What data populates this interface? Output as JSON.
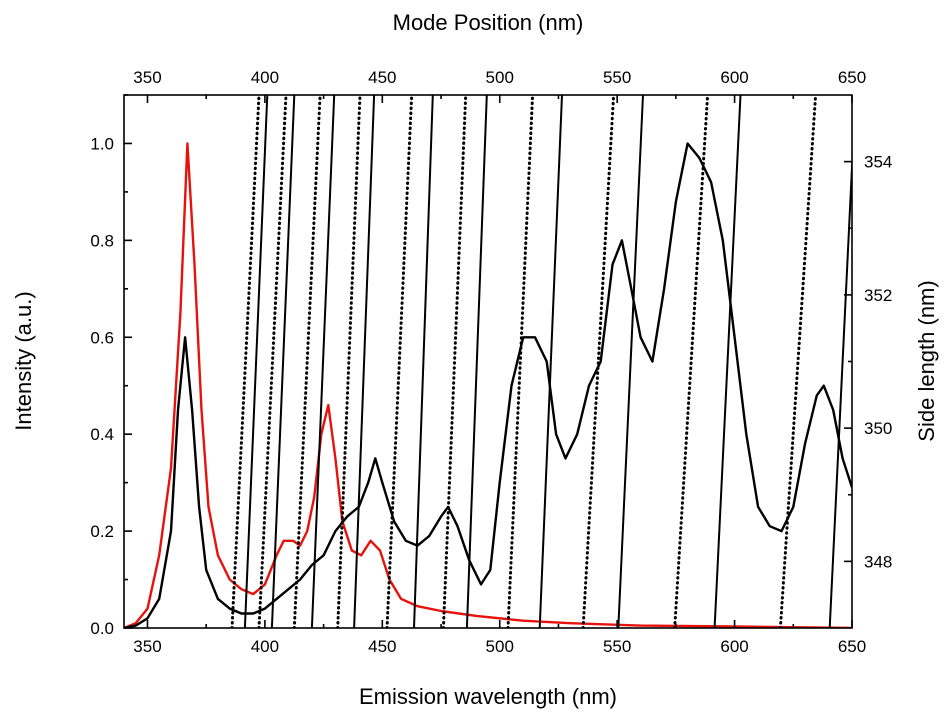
{
  "chart_data": {
    "type": "line",
    "title": "",
    "xlabel": "Emission wavelength (nm)",
    "ylabel": "Intensity (a.u.)",
    "x2label": "Mode Position (nm)",
    "y2label": "Side length (nm)",
    "xlim": [
      340,
      650
    ],
    "ylim": [
      0,
      1.1
    ],
    "x2lim": [
      340,
      650
    ],
    "y2lim": [
      347,
      355
    ],
    "x_ticks": [
      "350",
      "400",
      "450",
      "500",
      "550",
      "600",
      "650"
    ],
    "y_ticks": [
      "0.0",
      "0.2",
      "0.4",
      "0.6",
      "0.8",
      "1.0"
    ],
    "x2_ticks": [
      "350",
      "400",
      "450",
      "500",
      "550",
      "600",
      "650"
    ],
    "y2_ticks": [
      "348",
      "350",
      "352",
      "354"
    ],
    "grid": false,
    "series": [
      {
        "color": "#e8120c",
        "style": "solid",
        "axis": "left",
        "points": [
          [
            340,
            0.0
          ],
          [
            345,
            0.01
          ],
          [
            350,
            0.04
          ],
          [
            355,
            0.15
          ],
          [
            360,
            0.33
          ],
          [
            364,
            0.65
          ],
          [
            367,
            1.0
          ],
          [
            370,
            0.75
          ],
          [
            373,
            0.45
          ],
          [
            376,
            0.25
          ],
          [
            380,
            0.15
          ],
          [
            385,
            0.1
          ],
          [
            390,
            0.08
          ],
          [
            395,
            0.07
          ],
          [
            400,
            0.09
          ],
          [
            405,
            0.15
          ],
          [
            408,
            0.18
          ],
          [
            412,
            0.18
          ],
          [
            415,
            0.17
          ],
          [
            418,
            0.2
          ],
          [
            421,
            0.27
          ],
          [
            424,
            0.4
          ],
          [
            427,
            0.46
          ],
          [
            430,
            0.35
          ],
          [
            433,
            0.22
          ],
          [
            437,
            0.16
          ],
          [
            441,
            0.15
          ],
          [
            445,
            0.18
          ],
          [
            449,
            0.16
          ],
          [
            453,
            0.1
          ],
          [
            458,
            0.06
          ],
          [
            465,
            0.045
          ],
          [
            475,
            0.035
          ],
          [
            490,
            0.025
          ],
          [
            510,
            0.015
          ],
          [
            530,
            0.01
          ],
          [
            560,
            0.005
          ],
          [
            600,
            0.003
          ],
          [
            650,
            0.0
          ]
        ]
      },
      {
        "color": "#000000",
        "style": "solid",
        "axis": "left",
        "points": [
          [
            340,
            0.0
          ],
          [
            345,
            0.005
          ],
          [
            350,
            0.02
          ],
          [
            355,
            0.06
          ],
          [
            360,
            0.2
          ],
          [
            363,
            0.45
          ],
          [
            366,
            0.6
          ],
          [
            369,
            0.45
          ],
          [
            372,
            0.25
          ],
          [
            375,
            0.12
          ],
          [
            380,
            0.06
          ],
          [
            385,
            0.04
          ],
          [
            390,
            0.03
          ],
          [
            395,
            0.03
          ],
          [
            400,
            0.04
          ],
          [
            405,
            0.06
          ],
          [
            410,
            0.08
          ],
          [
            415,
            0.1
          ],
          [
            420,
            0.13
          ],
          [
            425,
            0.15
          ],
          [
            430,
            0.2
          ],
          [
            435,
            0.23
          ],
          [
            440,
            0.25
          ],
          [
            444,
            0.3
          ],
          [
            447,
            0.35
          ],
          [
            450,
            0.3
          ],
          [
            455,
            0.22
          ],
          [
            460,
            0.18
          ],
          [
            465,
            0.17
          ],
          [
            470,
            0.19
          ],
          [
            475,
            0.23
          ],
          [
            478,
            0.25
          ],
          [
            482,
            0.21
          ],
          [
            487,
            0.14
          ],
          [
            492,
            0.09
          ],
          [
            496,
            0.12
          ],
          [
            500,
            0.3
          ],
          [
            505,
            0.5
          ],
          [
            510,
            0.6
          ],
          [
            515,
            0.6
          ],
          [
            520,
            0.55
          ],
          [
            524,
            0.4
          ],
          [
            528,
            0.35
          ],
          [
            533,
            0.4
          ],
          [
            538,
            0.5
          ],
          [
            543,
            0.55
          ],
          [
            548,
            0.75
          ],
          [
            552,
            0.8
          ],
          [
            556,
            0.7
          ],
          [
            560,
            0.6
          ],
          [
            565,
            0.55
          ],
          [
            570,
            0.7
          ],
          [
            575,
            0.88
          ],
          [
            580,
            1.0
          ],
          [
            585,
            0.97
          ],
          [
            590,
            0.92
          ],
          [
            595,
            0.8
          ],
          [
            600,
            0.6
          ],
          [
            605,
            0.4
          ],
          [
            610,
            0.25
          ],
          [
            615,
            0.21
          ],
          [
            620,
            0.2
          ],
          [
            625,
            0.25
          ],
          [
            630,
            0.38
          ],
          [
            635,
            0.48
          ],
          [
            638,
            0.5
          ],
          [
            642,
            0.45
          ],
          [
            646,
            0.35
          ],
          [
            650,
            0.29
          ]
        ]
      },
      {
        "color": "#000000",
        "style": "solid",
        "axis": "x2y2",
        "points": [
          [
            391.5,
            347
          ],
          [
            401.0,
            355
          ]
        ]
      },
      {
        "color": "#000000",
        "style": "solid",
        "axis": "x2y2",
        "points": [
          [
            403.0,
            347
          ],
          [
            412.5,
            355
          ]
        ]
      },
      {
        "color": "#000000",
        "style": "solid",
        "axis": "x2y2",
        "points": [
          [
            420.0,
            347
          ],
          [
            429.5,
            355
          ]
        ]
      },
      {
        "color": "#000000",
        "style": "solid",
        "axis": "x2y2",
        "points": [
          [
            438.0,
            347
          ],
          [
            446.5,
            355
          ]
        ]
      },
      {
        "color": "#000000",
        "style": "solid",
        "axis": "x2y2",
        "points": [
          [
            463.5,
            347
          ],
          [
            471.5,
            355
          ]
        ]
      },
      {
        "color": "#000000",
        "style": "solid",
        "axis": "x2y2",
        "points": [
          [
            486.0,
            347
          ],
          [
            494.5,
            355
          ]
        ]
      },
      {
        "color": "#000000",
        "style": "solid",
        "axis": "x2y2",
        "points": [
          [
            517.0,
            347
          ],
          [
            526.5,
            355
          ]
        ]
      },
      {
        "color": "#000000",
        "style": "solid",
        "axis": "x2y2",
        "points": [
          [
            550.5,
            347
          ],
          [
            561.0,
            355
          ]
        ]
      },
      {
        "color": "#000000",
        "style": "solid",
        "axis": "x2y2",
        "points": [
          [
            591.5,
            347
          ],
          [
            602.5,
            355
          ]
        ]
      },
      {
        "color": "#000000",
        "style": "solid",
        "axis": "x2y2",
        "points": [
          [
            640.5,
            347
          ],
          [
            651.5,
            355
          ]
        ]
      },
      {
        "color": "#000000",
        "style": "dotted",
        "axis": "x2y2",
        "points": [
          [
            386.0,
            347
          ],
          [
            397.5,
            355
          ]
        ]
      },
      {
        "color": "#000000",
        "style": "dotted",
        "axis": "x2y2",
        "points": [
          [
            397.5,
            347
          ],
          [
            409.0,
            355
          ]
        ]
      },
      {
        "color": "#000000",
        "style": "dotted",
        "axis": "x2y2",
        "points": [
          [
            412.5,
            347
          ],
          [
            423.5,
            355
          ]
        ]
      },
      {
        "color": "#000000",
        "style": "dotted",
        "axis": "x2y2",
        "points": [
          [
            431.0,
            347
          ],
          [
            440.5,
            355
          ]
        ]
      },
      {
        "color": "#000000",
        "style": "dotted",
        "axis": "x2y2",
        "points": [
          [
            452.0,
            347
          ],
          [
            462.5,
            355
          ]
        ]
      },
      {
        "color": "#000000",
        "style": "dotted",
        "axis": "x2y2",
        "points": [
          [
            476.0,
            347
          ],
          [
            485.5,
            355
          ]
        ]
      },
      {
        "color": "#000000",
        "style": "dotted",
        "axis": "x2y2",
        "points": [
          [
            503.5,
            347
          ],
          [
            514.0,
            355
          ]
        ]
      },
      {
        "color": "#000000",
        "style": "dotted",
        "axis": "x2y2",
        "points": [
          [
            535.5,
            347
          ],
          [
            548.5,
            355
          ]
        ]
      },
      {
        "color": "#000000",
        "style": "dotted",
        "axis": "x2y2",
        "points": [
          [
            574.5,
            347
          ],
          [
            588.5,
            355
          ]
        ]
      },
      {
        "color": "#000000",
        "style": "dotted",
        "axis": "x2y2",
        "points": [
          [
            619.5,
            347
          ],
          [
            634.5,
            355
          ]
        ]
      }
    ]
  }
}
